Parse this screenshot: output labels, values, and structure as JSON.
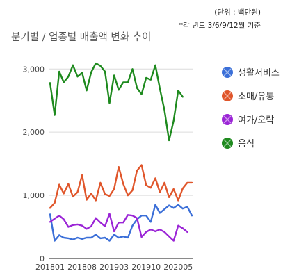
{
  "header": {
    "unit_note": "(단위 : 백만원)",
    "basis_note": "*각 년도 3/6/9/12월 기준",
    "title": "분기별 / 업종별 매출액 변화 추이"
  },
  "chart_data": {
    "type": "line",
    "title": "분기별 / 업종별 매출액 변화 추이",
    "xlabel": "",
    "ylabel": "",
    "ylim": [
      0,
      3300
    ],
    "yticks": [
      0,
      1000,
      2000,
      3000
    ],
    "ytick_labels": [
      "0",
      "1,000",
      "2,000",
      "3,000"
    ],
    "xtick_labels": [
      {
        "index": 0,
        "label": "201801"
      },
      {
        "index": 7,
        "label": "201808"
      },
      {
        "index": 14,
        "label": "201903"
      },
      {
        "index": 21,
        "label": "201910"
      },
      {
        "index": 28,
        "label": "202005"
      }
    ],
    "grid": true,
    "legend_position": "right",
    "series": [
      {
        "name": "생활서비스",
        "color": "#3b6fd8",
        "values": [
          700,
          280,
          370,
          330,
          320,
          300,
          330,
          310,
          330,
          330,
          380,
          320,
          330,
          280,
          380,
          330,
          350,
          330,
          520,
          620,
          680,
          680,
          580,
          850,
          720,
          780,
          840,
          800,
          850,
          790,
          820,
          680
        ]
      },
      {
        "name": "소매/유통",
        "color": "#e0562b",
        "values": [
          800,
          880,
          1170,
          1030,
          1180,
          980,
          1050,
          1320,
          930,
          1030,
          920,
          1200,
          1020,
          990,
          1100,
          1450,
          1180,
          1000,
          1080,
          1390,
          1480,
          1160,
          1120,
          1270,
          1050,
          1200,
          970,
          1100,
          920,
          1110,
          1200,
          1200
        ]
      },
      {
        "name": "여가/오락",
        "color": "#9b25d6",
        "values": [
          580,
          630,
          680,
          620,
          500,
          530,
          540,
          520,
          470,
          510,
          640,
          570,
          510,
          710,
          430,
          570,
          570,
          690,
          680,
          640,
          340,
          420,
          460,
          430,
          460,
          420,
          350,
          280,
          520,
          480,
          420
        ]
      },
      {
        "name": "음식",
        "color": "#1e8a1e",
        "values": [
          2780,
          2270,
          2960,
          2790,
          2880,
          3060,
          2880,
          2940,
          2660,
          2950,
          3090,
          3050,
          2960,
          2460,
          2900,
          2670,
          2790,
          2790,
          3000,
          2700,
          2600,
          2860,
          2830,
          3060,
          2690,
          2350,
          1870,
          2180,
          2660,
          2560
        ]
      }
    ]
  }
}
